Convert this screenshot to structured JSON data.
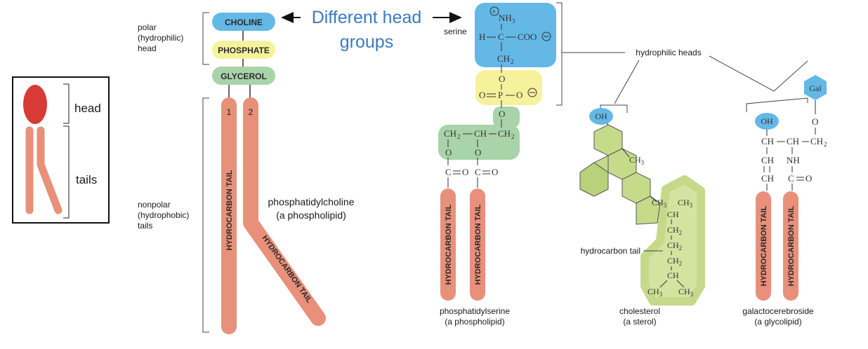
{
  "cartoon": {
    "head_label": "head",
    "tails_label": "tails"
  },
  "pc": {
    "polar_label": [
      "polar",
      "(hydrophilic)",
      "head"
    ],
    "nonpolar_label": [
      "nonpolar",
      "(hydrophobic)",
      "tails"
    ],
    "choline": "CHOLINE",
    "phosphate": "PHOSPHATE",
    "glycerol": "GLYCEROL",
    "tail_nums": [
      "1",
      "2"
    ],
    "tail_text": "HYDROCARBON TAIL",
    "name": "phosphatidylcholine",
    "subname": "(a phospholipid)"
  },
  "callout": {
    "line1": "Different head",
    "line2": "groups",
    "color": "#3a7abf"
  },
  "ps": {
    "serine_label": "serine",
    "tail_text": "HYDROCARBON TAIL",
    "name": "phosphatidylserine",
    "subname": "(a phospholipid)"
  },
  "hydrophilic_heads": "hydrophilic heads",
  "chol": {
    "oh": "OH",
    "ch3": "CH",
    "tail_label": "hydrocarbon tail",
    "name": "cholesterol",
    "subname": "(a sterol)"
  },
  "gal": {
    "oh": "OH",
    "gal": "Gal",
    "tail_text": "HYDROCARBON TAIL",
    "name": "galactocerebroside",
    "subname": "(a glycolipid)"
  },
  "colors": {
    "tail": "#e8907a",
    "head_red": "#d83a35",
    "blue": "#63b8e6",
    "yellow": "#f6f29b",
    "green": "#a9d3a9",
    "chol_green": "#d4e4a0"
  }
}
